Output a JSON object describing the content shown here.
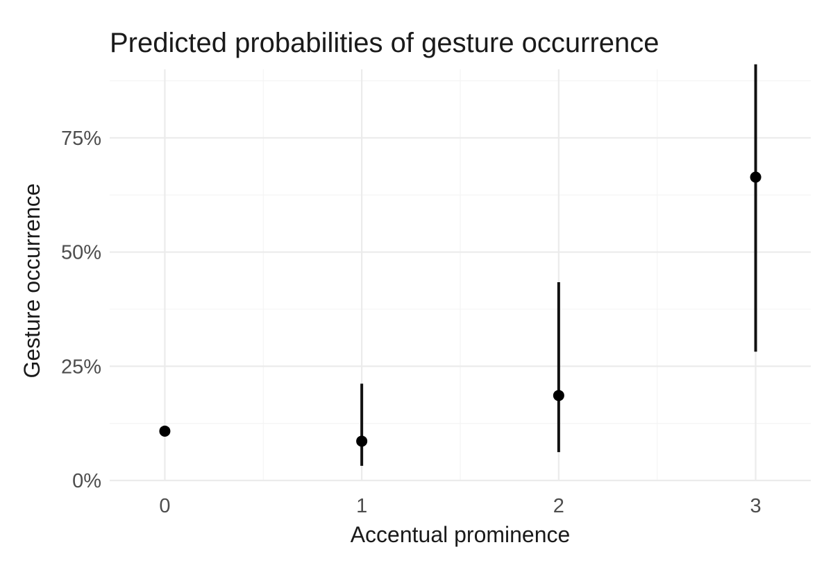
{
  "chart_data": {
    "type": "scatter",
    "title": "Predicted probabilities of gesture occurrence",
    "xlabel": "Accentual prominence",
    "ylabel": "Gesture occurrence",
    "x_tick_labels": [
      "0",
      "1",
      "2",
      "3"
    ],
    "y_tick_labels": [
      "0%",
      "25%",
      "50%",
      "75%"
    ],
    "x_ticks": [
      0,
      1,
      2,
      3
    ],
    "y_ticks": [
      0,
      0.25,
      0.5,
      0.75
    ],
    "xlim": [
      -0.28,
      3.28
    ],
    "ylim": [
      0,
      0.9
    ],
    "grid": true,
    "legend": "none",
    "points": [
      {
        "x": 0,
        "y": 0.108,
        "lower": null,
        "upper": null
      },
      {
        "x": 1,
        "y": 0.086,
        "lower": 0.032,
        "upper": 0.212
      },
      {
        "x": 2,
        "y": 0.186,
        "lower": 0.062,
        "upper": 0.434
      },
      {
        "x": 3,
        "y": 0.664,
        "lower": 0.282,
        "upper": 0.911
      }
    ],
    "colors": {
      "point": "#000000",
      "errorbar": "#111111",
      "grid": "#ebebeb"
    }
  }
}
